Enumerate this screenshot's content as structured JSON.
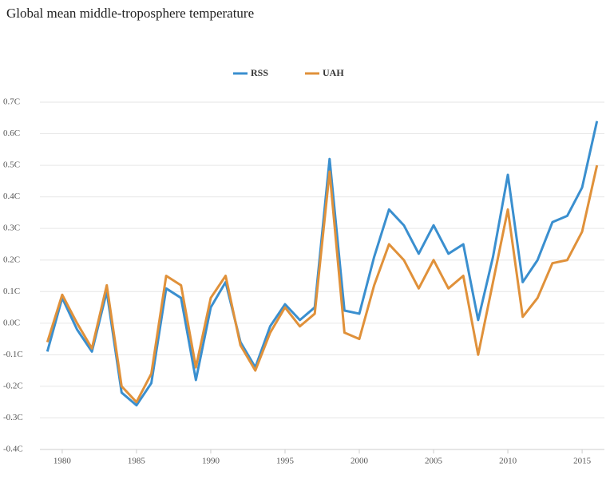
{
  "chart_data": {
    "type": "line",
    "title": "Global mean middle-troposphere temperature",
    "x": [
      1979,
      1980,
      1981,
      1982,
      1983,
      1984,
      1985,
      1986,
      1987,
      1988,
      1989,
      1990,
      1991,
      1992,
      1993,
      1994,
      1995,
      1996,
      1997,
      1998,
      1999,
      2000,
      2001,
      2002,
      2003,
      2004,
      2005,
      2006,
      2007,
      2008,
      2009,
      2010,
      2011,
      2012,
      2013,
      2014,
      2015,
      2016
    ],
    "series": [
      {
        "name": "RSS",
        "color": "#3a8fcf",
        "values": [
          -0.09,
          0.08,
          -0.02,
          -0.09,
          0.1,
          -0.22,
          -0.26,
          -0.19,
          0.11,
          0.08,
          -0.18,
          0.05,
          0.13,
          -0.06,
          -0.14,
          -0.01,
          0.06,
          0.01,
          0.05,
          0.52,
          0.04,
          0.03,
          0.21,
          0.36,
          0.31,
          0.22,
          0.31,
          0.22,
          0.25,
          0.01,
          0.21,
          0.47,
          0.13,
          0.2,
          0.32,
          0.34,
          0.43,
          0.64
        ]
      },
      {
        "name": "UAH",
        "color": "#e0913a",
        "values": [
          -0.06,
          0.09,
          0.0,
          -0.08,
          0.12,
          -0.2,
          -0.25,
          -0.16,
          0.15,
          0.12,
          -0.14,
          0.08,
          0.15,
          -0.07,
          -0.15,
          -0.03,
          0.05,
          -0.01,
          0.03,
          0.48,
          -0.03,
          -0.05,
          0.12,
          0.25,
          0.2,
          0.11,
          0.2,
          0.11,
          0.15,
          -0.1,
          0.13,
          0.36,
          0.02,
          0.08,
          0.19,
          0.2,
          0.29,
          0.5
        ]
      }
    ],
    "xlim": [
      1978.5,
      2016.5
    ],
    "xticks": [
      1980,
      1985,
      1990,
      1995,
      2000,
      2005,
      2010,
      2015
    ],
    "ylim": [
      -0.4,
      0.7
    ],
    "yticks": [
      {
        "value": -0.4,
        "label": "-0.4C"
      },
      {
        "value": -0.3,
        "label": "-0.3C"
      },
      {
        "value": -0.2,
        "label": "-0.2C"
      },
      {
        "value": -0.1,
        "label": "-0.1C"
      },
      {
        "value": 0,
        "label": "0.0C"
      },
      {
        "value": 0.1,
        "label": "0.1C"
      },
      {
        "value": 0.2,
        "label": "0.2C"
      },
      {
        "value": 0.3,
        "label": "0.3C"
      },
      {
        "value": 0.4,
        "label": "0.4C"
      },
      {
        "value": 0.5,
        "label": "0.5C"
      },
      {
        "value": 0.6,
        "label": "0.6C"
      },
      {
        "value": 0.7,
        "label": "0.7C"
      }
    ],
    "grid": true,
    "legend": "top"
  }
}
